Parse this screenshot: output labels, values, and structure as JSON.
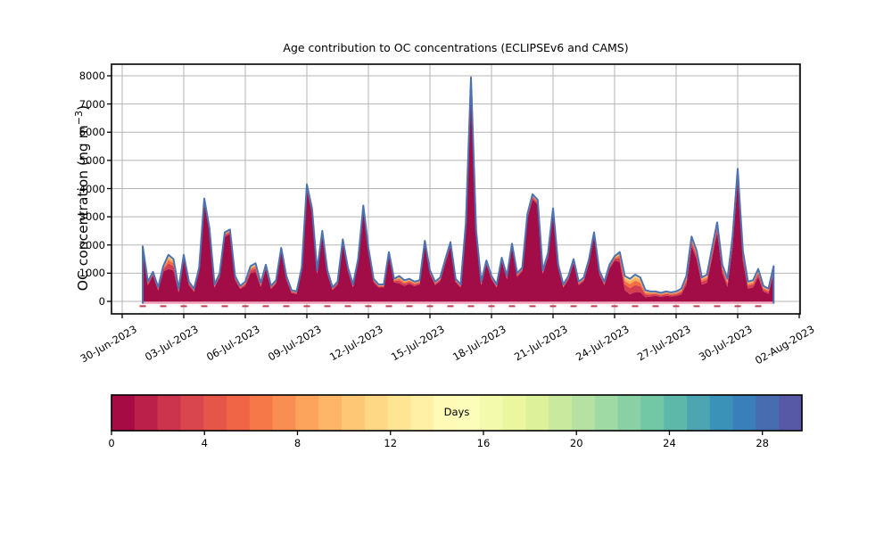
{
  "chart_data": {
    "type": "area",
    "stacked": true,
    "title": "Age contribution to OC concentrations (ECLIPSEv6 and CAMS)",
    "xlabel": "",
    "ylabel": "OC concentration (ng m⁻³)",
    "ylabel_parts": {
      "pre": "OC concentration (ng m",
      "sup": "−3",
      "post": ")"
    },
    "ylim": [
      -440,
      8410
    ],
    "yticks": [
      0,
      1000,
      2000,
      3000,
      4000,
      5000,
      6000,
      7000,
      8000
    ],
    "xlim_days_after_30jun": [
      -0.52,
      33.0
    ],
    "xtick_labels": [
      "30-Jun-2023",
      "03-Jul-2023",
      "06-Jul-2023",
      "09-Jul-2023",
      "12-Jul-2023",
      "15-Jul-2023",
      "18-Jul-2023",
      "21-Jul-2023",
      "24-Jul-2023",
      "27-Jul-2023",
      "30-Jul-2023",
      "02-Aug-2023"
    ],
    "xtick_days_after_30jun": [
      0,
      3,
      6,
      9,
      12,
      15,
      18,
      21,
      24,
      27,
      30,
      33
    ],
    "grid": true,
    "series_description": "Total OC concentration (blue envelope line) decomposed by plume age; young air (0–2 days, dark crimson) dominates; 'aged' is the summed contribution older than ~2 days (red/orange/yellow fringe).",
    "x_start": "01-Jul-2023 00:00",
    "x_step_hours": 6,
    "x_start_days_after_30jun": 1.0,
    "total": [
      1950,
      700,
      1050,
      500,
      1250,
      1650,
      1500,
      450,
      1650,
      700,
      450,
      1200,
      3650,
      2600,
      600,
      1000,
      2450,
      2550,
      900,
      550,
      700,
      1250,
      1350,
      650,
      1300,
      550,
      750,
      1900,
      900,
      400,
      350,
      1200,
      4150,
      3300,
      1100,
      2500,
      1100,
      500,
      700,
      2200,
      1200,
      600,
      1500,
      3400,
      1900,
      800,
      600,
      600,
      1750,
      800,
      900,
      750,
      800,
      700,
      750,
      2150,
      1100,
      700,
      850,
      1500,
      2100,
      800,
      600,
      2800,
      7950,
      2500,
      700,
      1450,
      900,
      600,
      1550,
      900,
      2050,
      1000,
      1200,
      3100,
      3800,
      3600,
      1100,
      1700,
      3300,
      1300,
      600,
      900,
      1500,
      700,
      850,
      1500,
      2450,
      1100,
      700,
      1300,
      1600,
      1750,
      900,
      800,
      950,
      850,
      400,
      350,
      350,
      300,
      350,
      320,
      350,
      450,
      900,
      2300,
      1800,
      850,
      950,
      1900,
      2800,
      1300,
      800,
      2300,
      4700,
      1800,
      700,
      750,
      1150,
      550,
      450,
      1250
    ],
    "aged": [
      150,
      120,
      130,
      110,
      200,
      500,
      400,
      140,
      150,
      120,
      110,
      130,
      180,
      150,
      120,
      130,
      160,
      160,
      130,
      110,
      150,
      250,
      300,
      140,
      150,
      110,
      120,
      150,
      130,
      100,
      90,
      130,
      180,
      160,
      130,
      150,
      130,
      100,
      110,
      140,
      130,
      110,
      130,
      160,
      140,
      120,
      110,
      110,
      150,
      130,
      260,
      200,
      180,
      160,
      150,
      160,
      130,
      120,
      130,
      140,
      150,
      120,
      110,
      160,
      220,
      160,
      120,
      130,
      120,
      110,
      130,
      120,
      150,
      130,
      130,
      160,
      180,
      170,
      130,
      140,
      160,
      130,
      110,
      120,
      140,
      120,
      130,
      140,
      160,
      130,
      120,
      140,
      150,
      350,
      500,
      550,
      620,
      520,
      250,
      180,
      150,
      140,
      150,
      140,
      160,
      200,
      300,
      350,
      300,
      250,
      300,
      350,
      350,
      300,
      280,
      350,
      400,
      350,
      250,
      250,
      280,
      200,
      180,
      250
    ],
    "style": {
      "total_line_color": "#4c72b0",
      "total_line_width": 2,
      "band_colors": [
        "#a30d47",
        "#d53e4f",
        "#f46d43",
        "#fdae61",
        "#fee08b"
      ],
      "aged_split_fractions": [
        0.4,
        0.25,
        0.2,
        0.15
      ],
      "baseline_value": -80,
      "baseline_stripe_color": "#f0a8bc",
      "daily_marker_color": "#c43b52",
      "daily_marker_value": -170,
      "grid_color": "#b5b5b5",
      "spine_color": "#000000",
      "background_color": "#ffffff"
    },
    "colorbar": {
      "label": "Days",
      "orientation": "horizontal",
      "vmin": 0,
      "vmax": 29.7,
      "n_segments": 30,
      "ticks": [
        0,
        4,
        8,
        12,
        16,
        20,
        24,
        28
      ],
      "cmap_name": "Spectral",
      "cmap_stops": [
        "#9e0142",
        "#d53e4f",
        "#f46d43",
        "#fdae61",
        "#fee08b",
        "#ffffbf",
        "#e6f598",
        "#abdda4",
        "#66c2a5",
        "#3288bd",
        "#5e4fa2"
      ]
    }
  }
}
